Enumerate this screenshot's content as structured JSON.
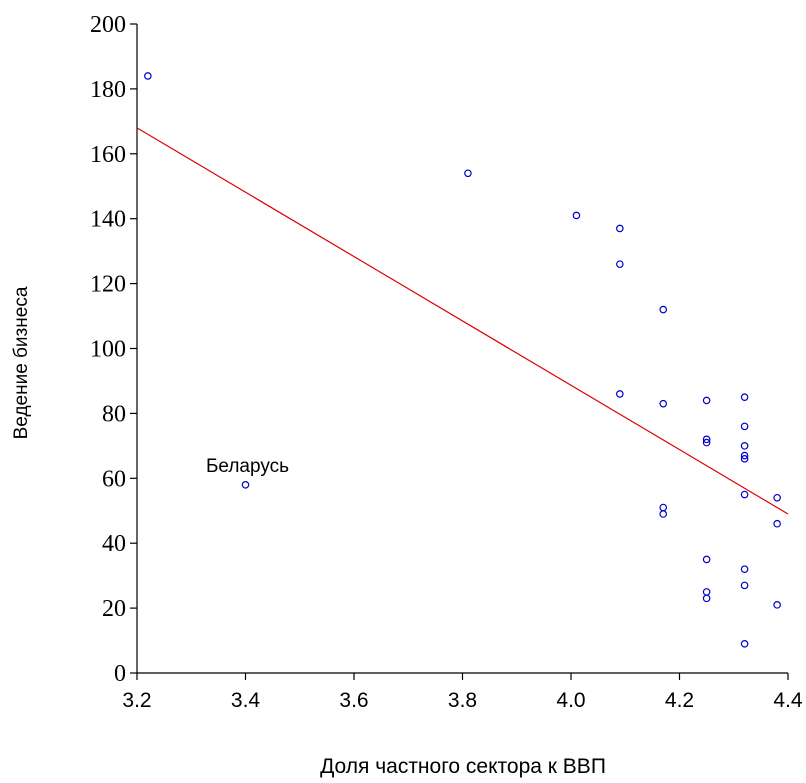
{
  "chart_data": {
    "type": "scatter",
    "title": "",
    "xlabel": "Доля частного сектора к ВВП",
    "ylabel": "Ведение бизнеса",
    "xlim": [
      3.2,
      4.4
    ],
    "ylim": [
      0,
      200
    ],
    "x_ticks": [
      "3.2",
      "3.4",
      "3.6",
      "3.8",
      "4.0",
      "4.2",
      "4.4"
    ],
    "y_ticks": [
      "0",
      "20",
      "40",
      "60",
      "80",
      "100",
      "120",
      "140",
      "160",
      "180",
      "200"
    ],
    "grid": false,
    "point_color": "#0000cc",
    "line_color": "#e00000",
    "points": [
      {
        "x": 3.22,
        "y": 184
      },
      {
        "x": 3.4,
        "y": 58
      },
      {
        "x": 3.81,
        "y": 154
      },
      {
        "x": 4.01,
        "y": 141
      },
      {
        "x": 4.09,
        "y": 137
      },
      {
        "x": 4.09,
        "y": 126
      },
      {
        "x": 4.09,
        "y": 86
      },
      {
        "x": 4.17,
        "y": 112
      },
      {
        "x": 4.17,
        "y": 83
      },
      {
        "x": 4.17,
        "y": 51
      },
      {
        "x": 4.17,
        "y": 49
      },
      {
        "x": 4.25,
        "y": 84
      },
      {
        "x": 4.25,
        "y": 72
      },
      {
        "x": 4.25,
        "y": 71
      },
      {
        "x": 4.25,
        "y": 35
      },
      {
        "x": 4.25,
        "y": 25
      },
      {
        "x": 4.25,
        "y": 23
      },
      {
        "x": 4.32,
        "y": 85
      },
      {
        "x": 4.32,
        "y": 76
      },
      {
        "x": 4.32,
        "y": 70
      },
      {
        "x": 4.32,
        "y": 67
      },
      {
        "x": 4.32,
        "y": 66
      },
      {
        "x": 4.32,
        "y": 55
      },
      {
        "x": 4.32,
        "y": 32
      },
      {
        "x": 4.32,
        "y": 27
      },
      {
        "x": 4.32,
        "y": 9
      },
      {
        "x": 4.38,
        "y": 54
      },
      {
        "x": 4.38,
        "y": 46
      },
      {
        "x": 4.38,
        "y": 21
      }
    ],
    "fit_line": {
      "x": [
        3.2,
        4.4
      ],
      "y": [
        168,
        49
      ]
    },
    "annotations": [
      {
        "text": "Беларусь",
        "x": 3.4,
        "y": 58
      }
    ]
  }
}
